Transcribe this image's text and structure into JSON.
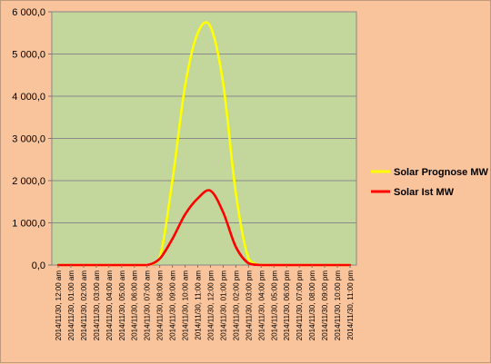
{
  "chart_data": {
    "type": "line",
    "title": "",
    "xlabel": "",
    "ylabel": "",
    "ylim": [
      0,
      6000
    ],
    "yticks": [
      "0,0",
      "1 000,0",
      "2 000,0",
      "3 000,0",
      "4 000,0",
      "5 000,0",
      "6 000,0"
    ],
    "grid": true,
    "legend_position": "right",
    "plot_background": "#c3d69b",
    "x": [
      "2014/11/30, 12:00 am",
      "2014/11/30, 01:00 am",
      "2014/11/30, 02:00 am",
      "2014/11/30, 03:00 am",
      "2014/11/30, 04:00 am",
      "2014/11/30, 05:00 am",
      "2014/11/30, 06:00 am",
      "2014/11/30, 07:00 am",
      "2014/11/30, 08:00 am",
      "2014/11/30, 09:00 am",
      "2014/11/30, 10:00 am",
      "2014/11/30, 11:00 am",
      "2014/11/30, 12:00 pm",
      "2014/11/30, 01:00 pm",
      "2014/11/30, 02:00 pm",
      "2014/11/30, 03:00 pm",
      "2014/11/30, 04:00 pm",
      "2014/11/30, 05:00 pm",
      "2014/11/30, 06:00 pm",
      "2014/11/30, 07:00 pm",
      "2014/11/30, 08:00 pm",
      "2014/11/30, 09:00 pm",
      "2014/11/30, 10:00 pm",
      "2014/11/30, 11:00 pm"
    ],
    "x_labels": [
      "2014/11/30, 12:00 am",
      "2014/11/30, 01:00 am",
      "2014/11/30, 02:00 am",
      "2014/11/30, 03:00 am",
      "2014/11/30, 04:00 am",
      "2014/11/30, 05:00 am",
      "2014/11/30, 06:00 am",
      "2014/11/30, 07:00 am",
      "2014/11/30, 08:00 am",
      "2014/11/30, 09:00 am",
      "2014/11/30, 10:00 am",
      "2014/11/30, 11:00 am",
      "2014/11/30, 12:00 pm",
      "2014/11/30, 01:00 pm",
      "2014/11/30, 02:00 pm",
      "2014/11/30, 03:00 pm",
      "2014/11/30, 04:00 pm",
      "2014/11/30, 05:00 pm",
      "2014/11/30, 06:00 pm",
      "2014/11/30, 07:00 pm",
      "2014/11/30, 08:00 pm",
      "2014/11/30, 09:00 pm",
      "2014/11/30, 10:00 pm",
      "2014/11/30, 11:00 pm"
    ],
    "series": [
      {
        "name": "Solar Prognose MW",
        "color": "#ffff00",
        "values": [
          0,
          0,
          0,
          0,
          0,
          0,
          0,
          0,
          180,
          2000,
          4250,
          5500,
          5650,
          4300,
          1700,
          150,
          0,
          0,
          0,
          0,
          0,
          0,
          0,
          0
        ]
      },
      {
        "name": "Solar Ist MW",
        "color": "#ff0000",
        "values": [
          0,
          0,
          0,
          0,
          0,
          0,
          0,
          0,
          150,
          620,
          1200,
          1580,
          1760,
          1250,
          430,
          40,
          0,
          0,
          0,
          0,
          0,
          0,
          0,
          0
        ]
      }
    ]
  }
}
